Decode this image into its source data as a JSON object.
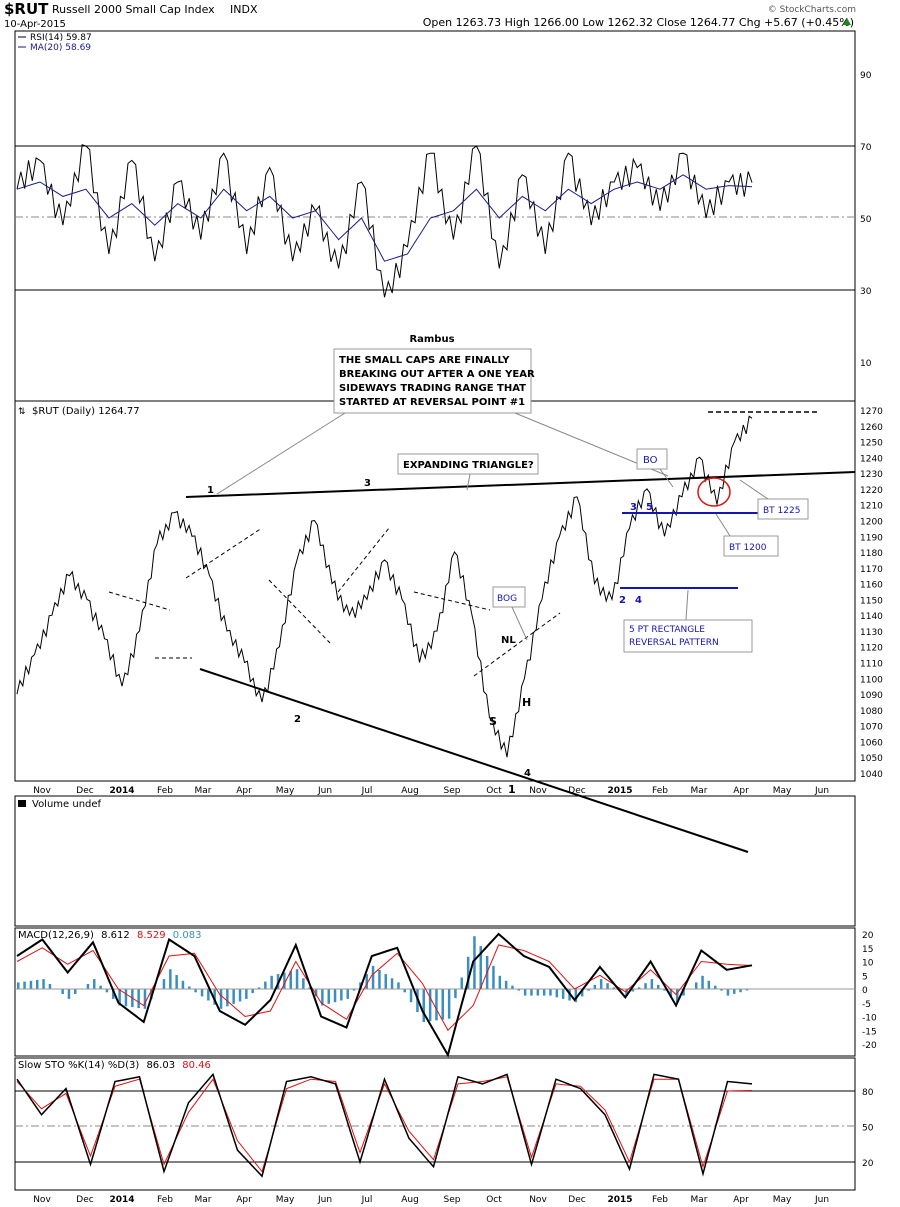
{
  "header": {
    "symbol": "$RUT",
    "name": "Russell 2000 Small Cap Index",
    "exchange": "INDX",
    "date": "10-Apr-2015",
    "ohlc_text": "Open 1263.73  High 1266.00  Low 1262.32  Close 1264.77  Chg +5.67 (+0.45%)",
    "chg_icon": "up-triangle-icon",
    "brand": "© StockCharts.com",
    "author": "Rambus"
  },
  "colors": {
    "price": "#000000",
    "ma": "#1a1a8c",
    "macd_signal": "#e01010",
    "histogram": "#3a8fc0",
    "annotation_blue": "#1515b5",
    "ellipse": "#e01010"
  },
  "chart_data": [
    {
      "type": "line",
      "panel": "RSI",
      "series": [
        {
          "name": "RSI(14) 59.87",
          "values": [
            58,
            66,
            48,
            70,
            40,
            66,
            38,
            60,
            44,
            68,
            40,
            64,
            38,
            52,
            36,
            60,
            28,
            42,
            68,
            44,
            70,
            36,
            62,
            40,
            68,
            48,
            60,
            64,
            52,
            68,
            50,
            60,
            59.87
          ]
        },
        {
          "name": "MA(20) 58.69",
          "values": [
            58,
            60,
            56,
            58,
            50,
            54,
            48,
            54,
            50,
            58,
            52,
            56,
            50,
            52,
            44,
            50,
            38,
            40,
            50,
            52,
            58,
            50,
            56,
            52,
            58,
            54,
            58,
            60,
            58,
            62,
            58,
            59,
            58.69
          ]
        }
      ],
      "yticks": [
        10,
        30,
        50,
        70,
        90
      ]
    },
    {
      "type": "line",
      "panel": "Price",
      "label": "$RUT (Daily) 1264.77",
      "y": [
        1090,
        1115,
        1140,
        1165,
        1150,
        1125,
        1095,
        1130,
        1185,
        1205,
        1190,
        1165,
        1130,
        1110,
        1085,
        1120,
        1175,
        1200,
        1160,
        1140,
        1150,
        1175,
        1150,
        1110,
        1130,
        1180,
        1140,
        1075,
        1050,
        1100,
        1150,
        1190,
        1215,
        1160,
        1150,
        1195,
        1220,
        1190,
        1215,
        1240,
        1210,
        1250,
        1264.77
      ],
      "x_labels": [
        "Nov",
        "Dec",
        "2014",
        "Feb",
        "Mar",
        "Apr",
        "May",
        "Jun",
        "Jul",
        "Aug",
        "Sep",
        "Oct",
        "Nov",
        "Dec",
        "2015",
        "Feb",
        "Mar",
        "Apr",
        "May",
        "Jun"
      ],
      "yticks": [
        1040,
        1050,
        1060,
        1070,
        1080,
        1090,
        1100,
        1110,
        1120,
        1130,
        1140,
        1150,
        1160,
        1170,
        1180,
        1190,
        1200,
        1210,
        1220,
        1230,
        1240,
        1250,
        1260,
        1270
      ],
      "annotations": [
        "THE SMALL CAPS ARE FINALLY BREAKING OUT AFTER A ONE YEAR SIDEWAYS TRADING RANGE THAT STARTED  AT REVERSAL POINT #1",
        "EXPANDING TRIANGLE?",
        "BO",
        "BOG",
        "BT 1225",
        "BT 1200",
        "5 PT RECTANGLE REVERSAL PATTERN",
        "1",
        "2",
        "3",
        "4",
        "NL",
        "S",
        "H",
        "1",
        "2",
        "3",
        "4",
        "5"
      ]
    },
    {
      "type": "area",
      "panel": "Volume",
      "label": "Volume undef"
    },
    {
      "type": "line",
      "panel": "MACD",
      "label": "MACD(12,26,9)",
      "values_text": [
        "8.612",
        "8.529",
        "0.083"
      ],
      "series": [
        {
          "name": "MACD",
          "values": [
            12,
            18,
            6,
            17,
            -5,
            -12,
            18,
            12,
            -8,
            -13,
            -4,
            16,
            -10,
            -14,
            12,
            15,
            -8,
            -24,
            10,
            20,
            12,
            8,
            -4,
            8,
            -3,
            10,
            -6,
            14,
            7,
            8.612
          ]
        },
        {
          "name": "Signal",
          "values": [
            10,
            15,
            9,
            14,
            0,
            -6,
            12,
            13,
            -2,
            -10,
            -8,
            10,
            -5,
            -11,
            5,
            13,
            2,
            -15,
            -6,
            16,
            14,
            10,
            0,
            5,
            -1,
            7,
            -2,
            10,
            9,
            8.529
          ]
        }
      ],
      "yticks": [
        20,
        15,
        10,
        5,
        0,
        -5,
        -10,
        -15,
        -20
      ]
    },
    {
      "type": "line",
      "panel": "SlowSTO",
      "label": "Slow STO %K(14) %D(3)",
      "values_text": [
        "86.03",
        "80.46"
      ],
      "series": [
        {
          "name": "%K",
          "values": [
            90,
            60,
            82,
            18,
            88,
            92,
            12,
            70,
            94,
            30,
            8,
            88,
            92,
            86,
            20,
            90,
            40,
            16,
            92,
            86,
            94,
            18,
            90,
            82,
            60,
            14,
            94,
            90,
            10,
            88,
            86.03
          ]
        },
        {
          "name": "%D",
          "values": [
            88,
            65,
            78,
            25,
            84,
            90,
            18,
            62,
            90,
            38,
            12,
            82,
            90,
            88,
            28,
            86,
            46,
            22,
            86,
            88,
            92,
            24,
            86,
            84,
            64,
            20,
            90,
            90,
            16,
            80,
            80.46
          ]
        }
      ],
      "yticks": [
        20,
        50,
        80
      ]
    }
  ]
}
